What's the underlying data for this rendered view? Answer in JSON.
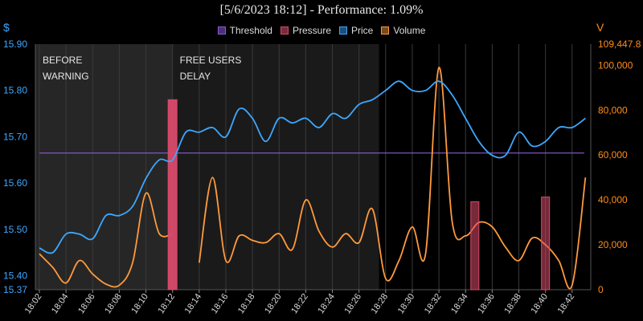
{
  "chart_data": {
    "type": "line",
    "title": "[5/6/2023 18:12] - Performance: 1.09%",
    "y_left_unit": "$",
    "y_right_unit": "V",
    "y_left": {
      "min": 15.37,
      "max": 15.9,
      "ticks": [
        15.37,
        15.4,
        15.5,
        15.6,
        15.7,
        15.8,
        15.9
      ],
      "tick_labels": [
        "15.37",
        "15.40",
        "15.50",
        "15.60",
        "15.70",
        "15.80",
        "15.90"
      ]
    },
    "y_right": {
      "min": 0,
      "max": 109447.8,
      "ticks": [
        0,
        20000,
        40000,
        60000,
        80000,
        100000,
        109447.8
      ],
      "tick_labels": [
        "0",
        "20,000",
        "40,000",
        "60,000",
        "80,000",
        "100,000",
        "109,447.8"
      ]
    },
    "x_range": [
      "18:02",
      "18:43"
    ],
    "x_ticks": [
      "18:02",
      "18:04",
      "18:06",
      "18:08",
      "18:10",
      "18:12",
      "18:14",
      "18:16",
      "18:18",
      "18:20",
      "18:22",
      "18:24",
      "18:26",
      "18:28",
      "18:30",
      "18:32",
      "18:34",
      "18:36",
      "18:38",
      "18:40",
      "18:42"
    ],
    "legend": [
      "Threshold",
      "Pressure",
      "Price",
      "Volume"
    ],
    "colors": {
      "threshold": "#8a5cd6",
      "pressure": "#d94a6a",
      "price": "#3da7ff",
      "volume": "#ff9a3c",
      "left_axis": "#3da7ff",
      "right_axis": "#ff8c1a"
    },
    "regions": [
      {
        "label_lines": [
          "BEFORE",
          "WARNING"
        ],
        "start": "18:02",
        "end": "18:12"
      },
      {
        "label_lines": [
          "FREE USERS",
          "DELAY"
        ],
        "start": "18:12",
        "end": "18:27.5"
      }
    ],
    "threshold": 15.665,
    "pressure_bars": [
      {
        "t": "18:12",
        "value": 15.78
      },
      {
        "t": "18:34.7",
        "value": 15.56
      },
      {
        "t": "18:40",
        "value": 15.57
      }
    ],
    "price": {
      "x": [
        "18:02",
        "18:03",
        "18:04",
        "18:05",
        "18:06",
        "18:07",
        "18:08",
        "18:09",
        "18:10",
        "18:11",
        "18:12",
        "18:13",
        "18:14",
        "18:15",
        "18:16",
        "18:17",
        "18:18",
        "18:19",
        "18:20",
        "18:21",
        "18:22",
        "18:23",
        "18:24",
        "18:25",
        "18:26",
        "18:27",
        "18:28",
        "18:29",
        "18:30",
        "18:31",
        "18:32",
        "18:33",
        "18:34",
        "18:35",
        "18:36",
        "18:37",
        "18:38",
        "18:39",
        "18:40",
        "18:41",
        "18:42",
        "18:43"
      ],
      "values": [
        15.46,
        15.45,
        15.49,
        15.49,
        15.48,
        15.53,
        15.53,
        15.55,
        15.61,
        15.65,
        15.65,
        15.71,
        15.71,
        15.72,
        15.7,
        15.76,
        15.74,
        15.69,
        15.74,
        15.73,
        15.74,
        15.72,
        15.75,
        15.74,
        15.77,
        15.78,
        15.8,
        15.82,
        15.8,
        15.8,
        15.82,
        15.79,
        15.74,
        15.69,
        15.66,
        15.66,
        15.71,
        15.68,
        15.69,
        15.72,
        15.72,
        15.74
      ]
    },
    "volume": {
      "segments": [
        {
          "x": [
            "18:02",
            "18:03",
            "18:04",
            "18:05",
            "18:06",
            "18:07",
            "18:08",
            "18:09",
            "18:10",
            "18:11",
            "18:12"
          ],
          "values": [
            16000,
            10000,
            3000,
            13000,
            7000,
            2500,
            2000,
            12000,
            43000,
            25000,
            25000
          ]
        },
        {
          "x": [
            "18:14",
            "18:15",
            "18:16",
            "18:17",
            "18:18",
            "18:19",
            "18:20",
            "18:21",
            "18:22",
            "18:23",
            "18:24",
            "18:25",
            "18:26",
            "18:27",
            "18:28",
            "18:29",
            "18:30",
            "18:31",
            "18:32",
            "18:33",
            "18:34",
            "18:35",
            "18:36",
            "18:37",
            "18:38",
            "18:39",
            "18:40",
            "18:41",
            "18:42",
            "18:43"
          ],
          "values": [
            12000,
            50000,
            13000,
            24000,
            22000,
            21000,
            25000,
            18000,
            40000,
            26000,
            19000,
            25000,
            21000,
            36000,
            5000,
            13000,
            28000,
            16000,
            99000,
            30000,
            24000,
            30000,
            28000,
            19000,
            13000,
            23000,
            20000,
            13000,
            2000,
            50000
          ]
        }
      ]
    }
  }
}
